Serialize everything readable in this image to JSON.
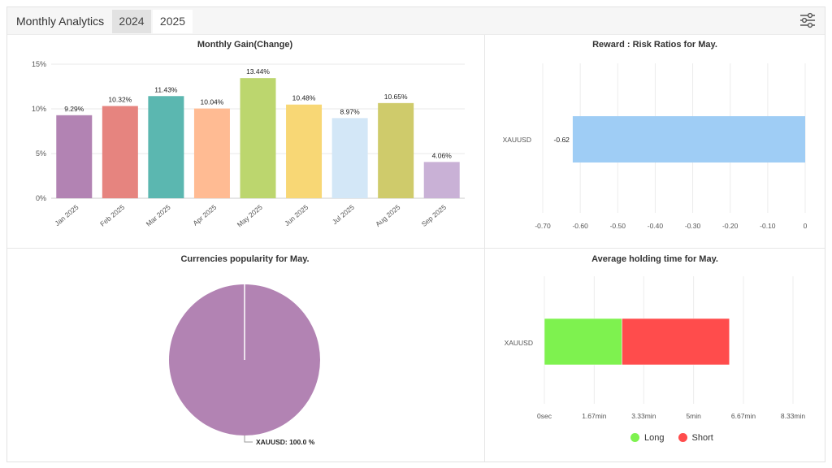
{
  "header": {
    "title": "Monthly Analytics",
    "tabs": [
      {
        "label": "2024",
        "active": false
      },
      {
        "label": "2025",
        "active": true
      }
    ],
    "filter_icon": "sliders-icon"
  },
  "chart_data": [
    {
      "id": "monthly_gain",
      "type": "bar",
      "title": "Monthly Gain(Change)",
      "categories": [
        "Jan 2025",
        "Feb 2025",
        "Mar 2025",
        "Apr 2025",
        "May 2025",
        "Jun 2025",
        "Jul 2025",
        "Aug 2025",
        "Sep 2025"
      ],
      "values": [
        9.29,
        10.32,
        11.43,
        10.04,
        13.44,
        10.48,
        8.97,
        10.65,
        4.06
      ],
      "labels": [
        "9.29%",
        "10.32%",
        "11.43%",
        "10.04%",
        "13.44%",
        "10.48%",
        "8.97%",
        "10.65%",
        "4.06%"
      ],
      "colors": [
        "#b283b3",
        "#e6847f",
        "#5bb7b0",
        "#ffbb93",
        "#bcd66e",
        "#f8d775",
        "#d3e7f7",
        "#cfcb6b",
        "#c9b1d6"
      ],
      "ylim": [
        0,
        15
      ],
      "yticks": [
        "0%",
        "5%",
        "10%",
        "15%"
      ],
      "ytick_values": [
        0,
        5,
        10,
        15
      ],
      "grid": true
    },
    {
      "id": "reward_risk",
      "type": "bar",
      "orientation": "horizontal",
      "title": "Reward : Risk Ratios for May.",
      "categories": [
        "XAUUSD"
      ],
      "values": [
        -0.62
      ],
      "labels": [
        "-0.62"
      ],
      "color": "#9fcdf5",
      "xlim": [
        -0.7,
        0
      ],
      "xticks": [
        "-0.70",
        "-0.60",
        "-0.50",
        "-0.40",
        "-0.30",
        "-0.20",
        "-0.10",
        "0"
      ],
      "xtick_values": [
        -0.7,
        -0.6,
        -0.5,
        -0.4,
        -0.3,
        -0.2,
        -0.1,
        0
      ]
    },
    {
      "id": "currency_popularity",
      "type": "pie",
      "title": "Currencies popularity for May.",
      "slices": [
        {
          "name": "XAUUSD",
          "value": 100.0,
          "label": "XAUUSD: 100.0 %",
          "color": "#b283b3"
        }
      ]
    },
    {
      "id": "holding_time",
      "type": "bar",
      "orientation": "horizontal",
      "stacked": true,
      "title": "Average holding time for May.",
      "categories": [
        "XAUUSD"
      ],
      "series": [
        {
          "name": "Long",
          "values": [
            2.6
          ],
          "color": "#7ef24f"
        },
        {
          "name": "Short",
          "values": [
            3.6
          ],
          "color": "#ff4c4c"
        }
      ],
      "xlim": [
        0,
        8.33
      ],
      "xticks": [
        "0sec",
        "1.67min",
        "3.33min",
        "5min",
        "6.67min",
        "8.33min"
      ],
      "xtick_values": [
        0,
        1.67,
        3.33,
        5,
        6.67,
        8.33
      ]
    }
  ]
}
